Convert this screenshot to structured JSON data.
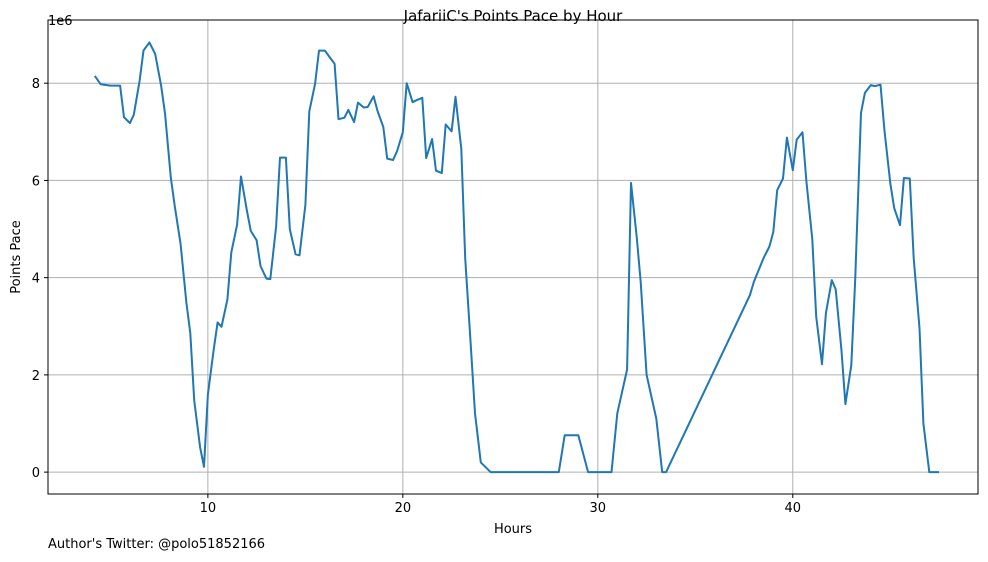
{
  "chart_data": {
    "type": "line",
    "title": "JafariiC's Points Pace by Hour",
    "xlabel": "Hours",
    "ylabel": "Points Pace",
    "y_offset_label": "1e6",
    "xlim": [
      1.8,
      49.5
    ],
    "ylim": [
      -450000,
      9300000
    ],
    "xticks": [
      10,
      20,
      30,
      40
    ],
    "yticks": [
      0,
      2000000,
      4000000,
      6000000,
      8000000
    ],
    "ytick_labels": [
      "0",
      "2",
      "4",
      "6",
      "8"
    ],
    "grid": true,
    "line_color": "#1f77b4",
    "series": [
      {
        "x": [
          4.2,
          4.5,
          5.0,
          5.5,
          5.7,
          6.0,
          6.2,
          6.5,
          6.7,
          7.0,
          7.3,
          7.6,
          7.8,
          8.1,
          8.3,
          8.6,
          8.9,
          9.1,
          9.3,
          9.6,
          9.8,
          10.0,
          10.3,
          10.5,
          10.7,
          11.0,
          11.2,
          11.5,
          11.7,
          12.0,
          12.2,
          12.5,
          12.7,
          13.0,
          13.2,
          13.5,
          13.7,
          14.0,
          14.2,
          14.5,
          14.7,
          15.0,
          15.2,
          15.5,
          15.7,
          16.0,
          16.2,
          16.5,
          16.7,
          17.0,
          17.2,
          17.5,
          17.7,
          18.0,
          18.2,
          18.5,
          18.7,
          19.0,
          19.2,
          19.5,
          19.7,
          20.0,
          20.2,
          20.5,
          20.7,
          21.0,
          21.2,
          21.5,
          21.7,
          22.0,
          22.2,
          22.5,
          22.7,
          23.0,
          23.2,
          23.5,
          23.7,
          24.0,
          24.5,
          25.0,
          26.0,
          27.0,
          27.8,
          28.0,
          28.3,
          28.5,
          28.8,
          29.0,
          29.5,
          30.0,
          30.5,
          30.7,
          31.0,
          31.5,
          31.7,
          32.0,
          32.2,
          32.5,
          33.0,
          33.3,
          33.5,
          37.8,
          38.0,
          38.5,
          38.8,
          39.0,
          39.2,
          39.5,
          39.7,
          40.0,
          40.2,
          40.5,
          40.7,
          41.0,
          41.2,
          41.5,
          41.7,
          42.0,
          42.2,
          42.5,
          42.7,
          43.0,
          43.2,
          43.5,
          43.7,
          44.0,
          44.2,
          44.5,
          44.7,
          45.0,
          45.2,
          45.5,
          45.7,
          46.0,
          46.2,
          46.5,
          46.7,
          47.0,
          47.5
        ],
        "y": [
          8150000,
          7980000,
          7950000,
          7950000,
          7300000,
          7180000,
          7350000,
          8050000,
          8670000,
          8840000,
          8600000,
          7950000,
          7380000,
          6060000,
          5480000,
          4690000,
          3480000,
          2860000,
          1480000,
          510000,
          110000,
          1600000,
          2520000,
          3080000,
          2990000,
          3550000,
          4520000,
          5090000,
          6080000,
          5380000,
          4960000,
          4770000,
          4240000,
          3980000,
          3970000,
          5050000,
          6470000,
          6470000,
          5000000,
          4480000,
          4460000,
          5500000,
          7420000,
          7990000,
          8670000,
          8670000,
          8560000,
          8400000,
          7260000,
          7290000,
          7450000,
          7200000,
          7600000,
          7500000,
          7510000,
          7730000,
          7430000,
          7100000,
          6450000,
          6420000,
          6600000,
          6990000,
          8000000,
          7610000,
          7650000,
          7700000,
          6460000,
          6850000,
          6200000,
          6150000,
          7150000,
          7010000,
          7720000,
          6650000,
          4400000,
          2500000,
          1210000,
          200000,
          0,
          0,
          0,
          0,
          0,
          0,
          760000,
          760000,
          760000,
          760000,
          0,
          0,
          0,
          0,
          1210000,
          2110000,
          5950000,
          4820000,
          3910000,
          2000000,
          1100000,
          0,
          0,
          3640000,
          3910000,
          4400000,
          4640000,
          4940000,
          5800000,
          6040000,
          6880000,
          6210000,
          6840000,
          6990000,
          5980000,
          4790000,
          3200000,
          2220000,
          3270000,
          3950000,
          3760000,
          2500000,
          1400000,
          2200000,
          3960000,
          7390000,
          7800000,
          7960000,
          7940000,
          7970000,
          7040000,
          5940000,
          5430000,
          5080000,
          6050000,
          6040000,
          4400000,
          2960000,
          1000000,
          0,
          0
        ]
      }
    ]
  },
  "footer": {
    "author_text": "Author's Twitter: @polo51852166"
  }
}
